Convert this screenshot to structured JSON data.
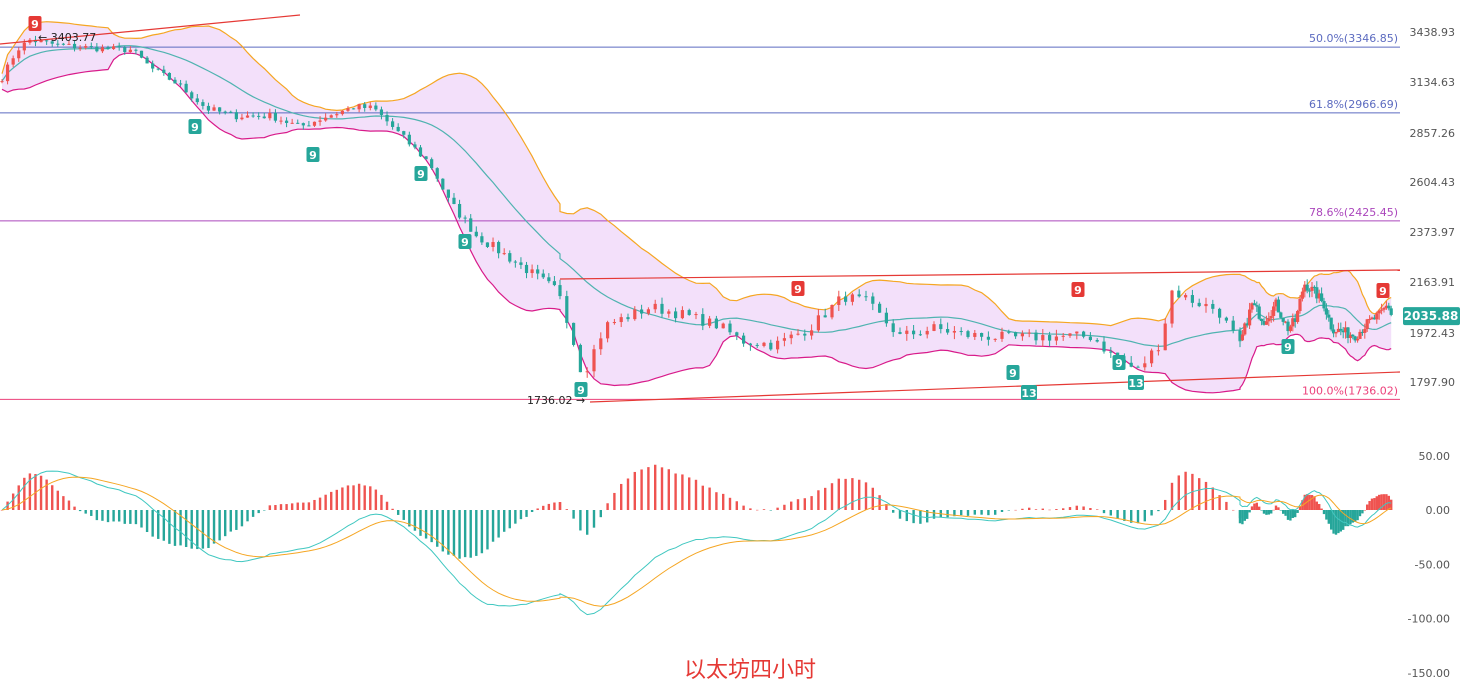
{
  "chart_data": [
    {
      "type": "candlestick",
      "title": "以太坊四小时",
      "ylim": [
        1700,
        3480
      ],
      "y_ticks": [
        "3438.93",
        "3134.63",
        "2857.26",
        "2604.43",
        "2373.97",
        "2163.91",
        "1972.43",
        "1797.90"
      ],
      "y_tick_values": [
        3438.93,
        3134.63,
        2857.26,
        2604.43,
        2373.97,
        2163.91,
        1972.43,
        1797.9
      ],
      "current_price": {
        "label": "2035.88",
        "value": 2035.88,
        "color": "#26a69a"
      },
      "fib_levels": [
        {
          "label": "50.0%(3346.85)",
          "value": 3346.85,
          "color": "#5c6bc0"
        },
        {
          "label": "61.8%(2966.69)",
          "value": 2966.69,
          "color": "#5c6bc0"
        },
        {
          "label": "78.6%(2425.45)",
          "value": 2425.45,
          "color": "#ab47bc"
        },
        {
          "label": "100.0%(1736.02)",
          "value": 1736.02,
          "color": "#ec407a"
        }
      ],
      "annotations": [
        {
          "label": "← 3403.77",
          "value": 3403.77
        },
        {
          "label": "1736.02 →",
          "value": 1736.02
        }
      ],
      "td_counts": [
        {
          "label": "9",
          "type": "sell",
          "at": 3410
        },
        {
          "label": "9",
          "type": "buy",
          "at": 2930
        },
        {
          "label": "9",
          "type": "buy",
          "at": 2790
        },
        {
          "label": "9",
          "type": "buy",
          "at": 2640
        },
        {
          "label": "9",
          "type": "buy",
          "at": 2330
        },
        {
          "label": "9",
          "type": "buy",
          "at": 1780
        },
        {
          "label": "9",
          "type": "sell",
          "at": 2150
        },
        {
          "label": "9",
          "type": "buy",
          "at": 1850
        },
        {
          "label": "13",
          "type": "buy",
          "at": 1770
        },
        {
          "label": "9",
          "type": "sell",
          "at": 2150
        },
        {
          "label": "9",
          "type": "buy",
          "at": 1890
        },
        {
          "label": "13",
          "type": "buy",
          "at": 1810
        },
        {
          "label": "9",
          "type": "buy",
          "at": 1940
        },
        {
          "label": "9",
          "type": "sell",
          "at": 2130
        }
      ],
      "colors": {
        "up": "#ef5350",
        "down": "#26a69a",
        "bb_upper": "#f5a623",
        "bb_lower": "#d81b8a",
        "bb_mid": "#4fb3b0",
        "bb_fill": "#f3e0fa"
      }
    },
    {
      "type": "macd",
      "ylim": [
        -160,
        70
      ],
      "y_ticks": [
        "50.00",
        "0.00",
        "-50.00",
        "-100.00",
        "-150.00"
      ],
      "y_tick_values": [
        50,
        0,
        -50,
        -100,
        -150
      ],
      "colors": {
        "hist_up": "#ef5350",
        "hist_down": "#26a69a",
        "dif": "#3fc7c0",
        "dea": "#f5a623"
      }
    }
  ]
}
